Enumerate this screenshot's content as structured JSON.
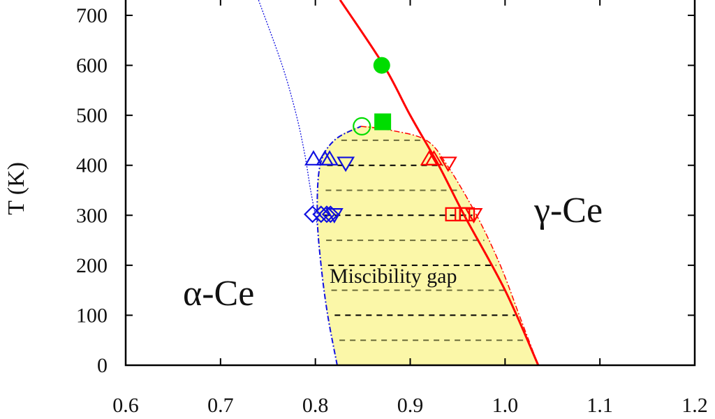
{
  "chart_data": {
    "type": "scatter",
    "title": "",
    "xlabel": "",
    "ylabel": "T (K)",
    "xlim": [
      0.6,
      1.2
    ],
    "ylim": [
      0,
      700
    ],
    "xticks": [
      "0.6",
      "0.7",
      "0.8",
      "0.9",
      "1.0",
      "1.1",
      "1.2"
    ],
    "yticks": [
      "0",
      "100",
      "200",
      "300",
      "400",
      "500",
      "600",
      "700"
    ],
    "annotations": {
      "alpha": "α-Ce",
      "gamma": "γ-Ce",
      "gap": "Miscibility gap"
    },
    "colors": {
      "gap_fill": "#fbf7a8",
      "red": "#ff0000",
      "blue": "#1010e0",
      "green": "#00dd00"
    },
    "miscibility_gap_boundary": {
      "left": [
        [
          0.823,
          0
        ],
        [
          0.813,
          100
        ],
        [
          0.806,
          200
        ],
        [
          0.802,
          300
        ],
        [
          0.805,
          400
        ],
        [
          0.82,
          450
        ],
        [
          0.848,
          478
        ]
      ],
      "right": [
        [
          0.848,
          478
        ],
        [
          0.88,
          470
        ],
        [
          0.917,
          450
        ],
        [
          0.939,
          400
        ],
        [
          0.97,
          300
        ],
        [
          0.995,
          200
        ],
        [
          1.015,
          100
        ],
        [
          1.035,
          0
        ]
      ]
    },
    "tie_lines_T": [
      50,
      100,
      150,
      200,
      250,
      300,
      350,
      400,
      450
    ],
    "series": [
      {
        "name": "gamma-boundary (red solid)",
        "type": "line",
        "points": [
          [
            1.035,
            0
          ],
          [
            1.0,
            150
          ],
          [
            0.957,
            300
          ],
          [
            0.93,
            400
          ],
          [
            0.9,
            500
          ],
          [
            0.872,
            600
          ],
          [
            0.826,
            731
          ]
        ]
      },
      {
        "name": "alpha-boundary (blue dotted)",
        "type": "line",
        "points": [
          [
            0.802,
            280
          ],
          [
            0.795,
            350
          ],
          [
            0.789,
            420
          ],
          [
            0.78,
            500
          ],
          [
            0.765,
            600
          ],
          [
            0.74,
            731
          ]
        ]
      },
      {
        "name": "green filled circle",
        "marker": "circle-filled",
        "color": "green",
        "points": [
          [
            0.87,
            600
          ]
        ]
      },
      {
        "name": "green filled square",
        "marker": "square-filled",
        "color": "green",
        "points": [
          [
            0.871,
            487
          ]
        ]
      },
      {
        "name": "green open circle",
        "marker": "circle-open",
        "color": "green",
        "points": [
          [
            0.849,
            478
          ]
        ]
      },
      {
        "name": "blue up triangles",
        "marker": "triangle-up",
        "color": "blue",
        "points": [
          [
            0.798,
            412
          ],
          [
            0.81,
            412
          ],
          [
            0.815,
            412
          ]
        ]
      },
      {
        "name": "blue down triangles",
        "marker": "triangle-down",
        "color": "blue",
        "points": [
          [
            0.832,
            405
          ],
          [
            0.82,
            302
          ]
        ]
      },
      {
        "name": "blue diamonds/left",
        "marker": "diamond",
        "color": "blue",
        "points": [
          [
            0.797,
            302
          ],
          [
            0.806,
            302
          ],
          [
            0.812,
            302
          ],
          [
            0.816,
            302
          ]
        ]
      },
      {
        "name": "red up triangles",
        "marker": "triangle-up",
        "color": "red",
        "points": [
          [
            0.92,
            412
          ],
          [
            0.925,
            412
          ]
        ]
      },
      {
        "name": "red down triangles",
        "marker": "triangle-down",
        "color": "red",
        "points": [
          [
            0.94,
            405
          ],
          [
            0.967,
            302
          ]
        ]
      },
      {
        "name": "red squares/diamonds",
        "marker": "square-open",
        "color": "red",
        "points": [
          [
            0.945,
            302
          ],
          [
            0.955,
            302
          ],
          [
            0.96,
            302
          ]
        ]
      }
    ]
  }
}
